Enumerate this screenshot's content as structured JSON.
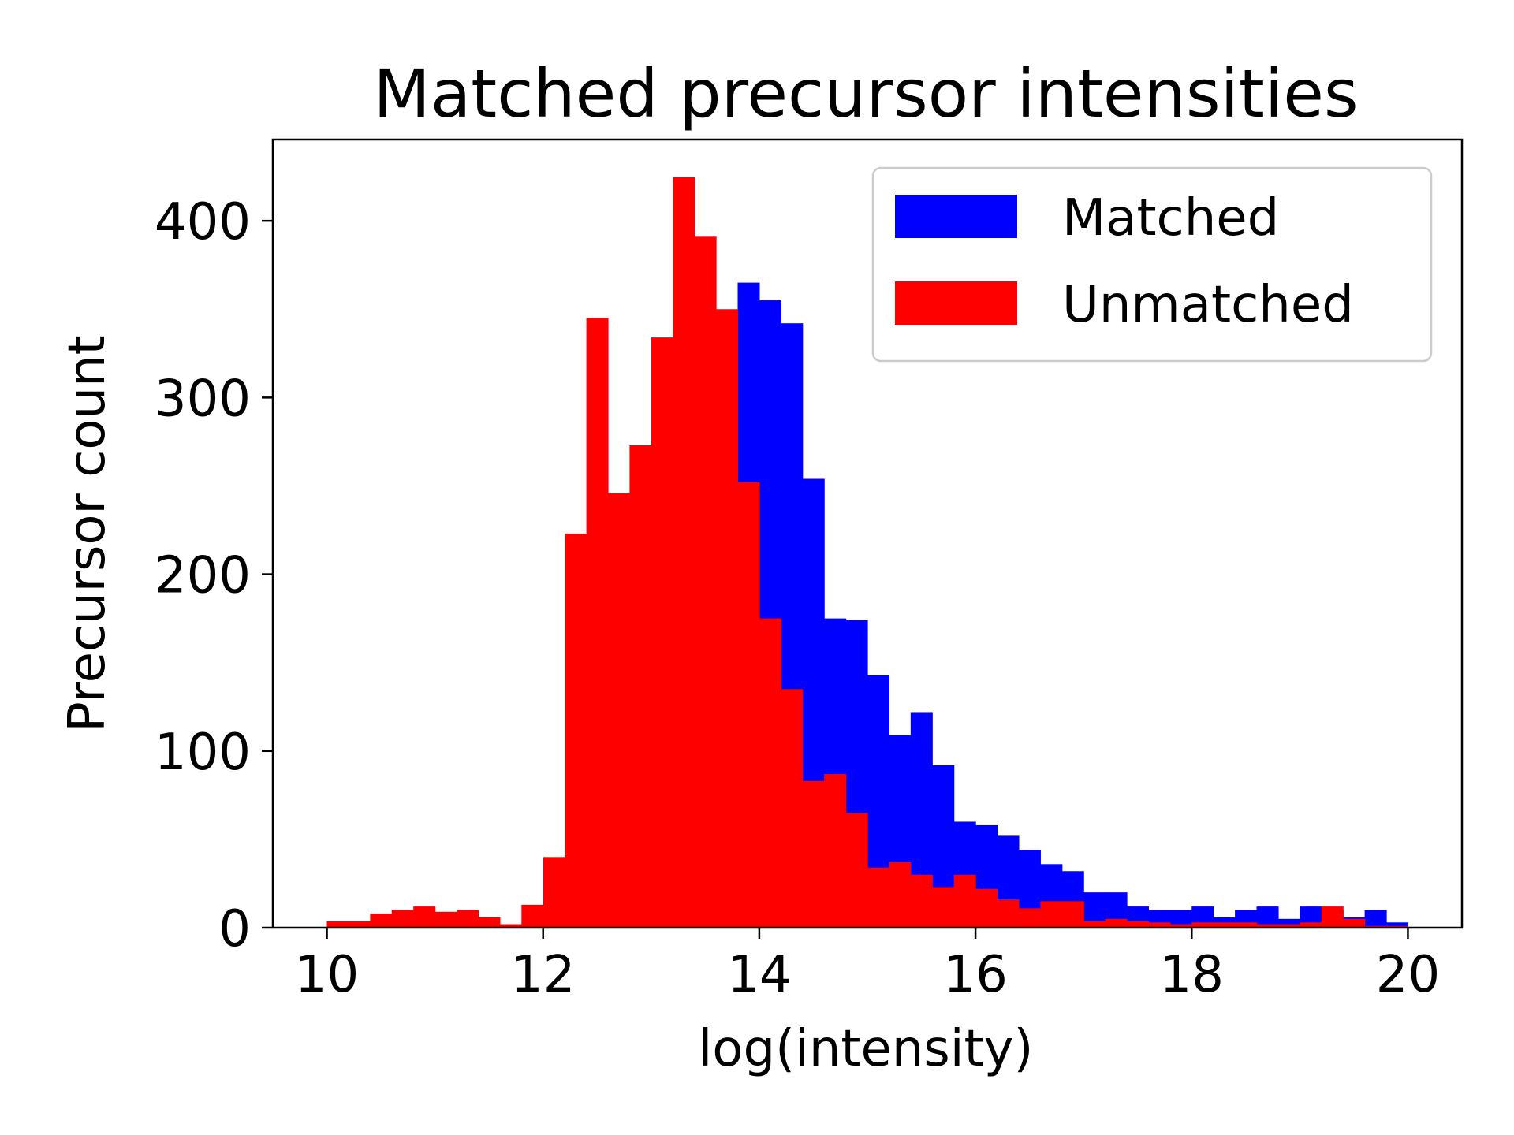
{
  "chart_data": {
    "type": "bar",
    "title": "Matched precursor intensities",
    "xlabel": "log(intensity)",
    "ylabel": "Precursor count",
    "xlim": [
      9.5,
      20.5
    ],
    "ylim": [
      0,
      446
    ],
    "x_ticks": [
      10,
      12,
      14,
      16,
      18,
      20
    ],
    "y_ticks": [
      0,
      100,
      200,
      300,
      400
    ],
    "x_tick_labels": [
      "10",
      "12",
      "14",
      "16",
      "18",
      "20"
    ],
    "y_tick_labels": [
      "0",
      "100",
      "200",
      "300",
      "400"
    ],
    "bin_start": 10.0,
    "bin_width": 0.2,
    "legend_position": "top-right",
    "grid": false,
    "series": [
      {
        "name": "Matched",
        "color": "#0000ff",
        "values": [
          0,
          0,
          0,
          0,
          0,
          0,
          0,
          0,
          0,
          0,
          0,
          0,
          0,
          0,
          0,
          0,
          0,
          0,
          0,
          365,
          355,
          342,
          254,
          175,
          174,
          143,
          109,
          122,
          92,
          60,
          58,
          52,
          44,
          36,
          32,
          20,
          20,
          12,
          10,
          10,
          12,
          6,
          10,
          12,
          5,
          12,
          10,
          6,
          10,
          3
        ]
      },
      {
        "name": "Unmatched",
        "color": "#ff0000",
        "values": [
          4,
          4,
          8,
          10,
          12,
          9,
          10,
          6,
          2,
          13,
          40,
          223,
          345,
          246,
          273,
          334,
          425,
          391,
          350,
          252,
          175,
          135,
          83,
          87,
          65,
          34,
          37,
          30,
          23,
          30,
          22,
          16,
          11,
          15,
          15,
          4,
          5,
          4,
          3,
          2,
          3,
          3,
          3,
          2,
          2,
          3,
          12,
          5,
          1,
          1
        ]
      }
    ]
  }
}
